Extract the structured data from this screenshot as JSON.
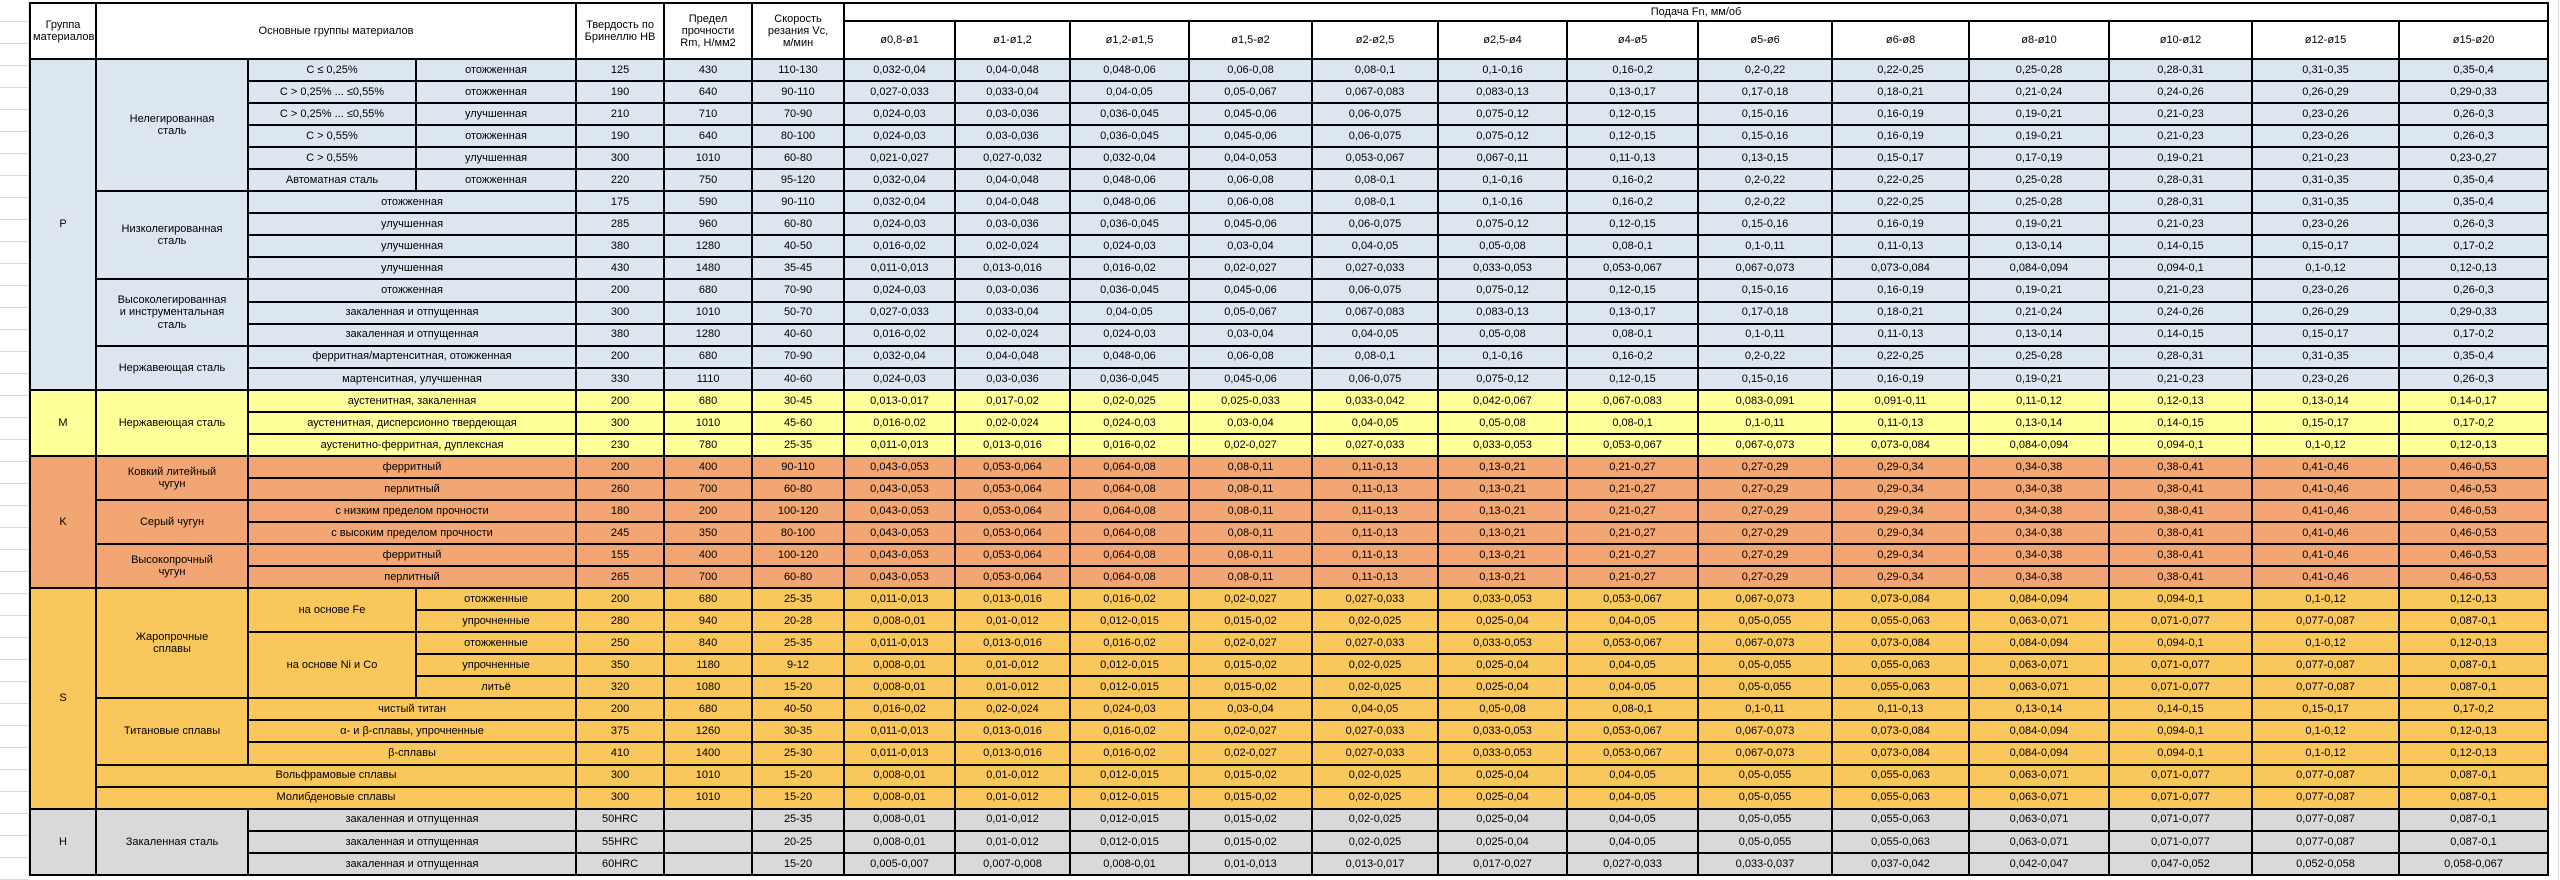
{
  "header": {
    "col_group": "Группа\nматериалов",
    "col_materials": "Основные группы материалов",
    "col_hb": "Твердость по\nБринеллю НВ",
    "col_rm": "Предел\nпрочности\nRm, Н/мм2",
    "col_vc": "Скорость\nрезания Vc,\nм/мин",
    "feed_title": "Подача Fn, мм/об",
    "diameters": [
      "ø0,8-ø1",
      "ø1-ø1,2",
      "ø1,2-ø1,5",
      "ø1,5-ø2",
      "ø2-ø2,5",
      "ø2,5-ø4",
      "ø4-ø5",
      "ø5-ø6",
      "ø6-ø8",
      "ø8-ø10",
      "ø10-ø12",
      "ø12-ø15",
      "ø15-ø20"
    ]
  },
  "colors": {
    "P": "#DCE6F1",
    "M": "#FFFF99",
    "K": "#F2A673",
    "S": "#FAC75C",
    "H": "#D9D9D9",
    "header_bg": "#FFFFFF",
    "grid_line": "#000000"
  },
  "feed_patterns": {
    "A": [
      "0,032-0,04",
      "0,04-0,048",
      "0,048-0,06",
      "0,06-0,08",
      "0,08-0,1",
      "0,1-0,16",
      "0,16-0,2",
      "0,2-0,22",
      "0,22-0,25",
      "0,25-0,28",
      "0,28-0,31",
      "0,31-0,35",
      "0,35-0,4"
    ],
    "B": [
      "0,027-0,033",
      "0,033-0,04",
      "0,04-0,05",
      "0,05-0,067",
      "0,067-0,083",
      "0,083-0,13",
      "0,13-0,17",
      "0,17-0,18",
      "0,18-0,21",
      "0,21-0,24",
      "0,24-0,26",
      "0,26-0,29",
      "0,29-0,33"
    ],
    "C": [
      "0,024-0,03",
      "0,03-0,036",
      "0,036-0,045",
      "0,045-0,06",
      "0,06-0,075",
      "0,075-0,12",
      "0,12-0,15",
      "0,15-0,16",
      "0,16-0,19",
      "0,19-0,21",
      "0,21-0,23",
      "0,23-0,26",
      "0,26-0,3"
    ],
    "F": [
      "0,021-0,027",
      "0,027-0,032",
      "0,032-0,04",
      "0,04-0,053",
      "0,053-0,067",
      "0,067-0,11",
      "0,11-0,13",
      "0,13-0,15",
      "0,15-0,17",
      "0,17-0,19",
      "0,19-0,21",
      "0,21-0,23",
      "0,23-0,27"
    ],
    "D": [
      "0,016-0,02",
      "0,02-0,024",
      "0,024-0,03",
      "0,03-0,04",
      "0,04-0,05",
      "0,05-0,08",
      "0,08-0,1",
      "0,1-0,11",
      "0,11-0,13",
      "0,13-0,14",
      "0,14-0,15",
      "0,15-0,17",
      "0,17-0,2"
    ],
    "E": [
      "0,011-0,013",
      "0,013-0,016",
      "0,016-0,02",
      "0,02-0,027",
      "0,027-0,033",
      "0,033-0,053",
      "0,053-0,067",
      "0,067-0,073",
      "0,073-0,084",
      "0,084-0,094",
      "0,094-0,1",
      "0,1-0,12",
      "0,12-0,13"
    ],
    "G": [
      "0,013-0,017",
      "0,017-0,02",
      "0,02-0,025",
      "0,025-0,033",
      "0,033-0,042",
      "0,042-0,067",
      "0,067-0,083",
      "0,083-0,091",
      "0,091-0,11",
      "0,11-0,12",
      "0,12-0,13",
      "0,13-0,14",
      "0,14-0,17"
    ],
    "K": [
      "0,043-0,053",
      "0,053-0,064",
      "0,064-0,08",
      "0,08-0,11",
      "0,11-0,13",
      "0,13-0,21",
      "0,21-0,27",
      "0,27-0,29",
      "0,29-0,34",
      "0,34-0,38",
      "0,38-0,41",
      "0,41-0,46",
      "0,46-0,53"
    ],
    "H8": [
      "0,008-0,01",
      "0,01-0,012",
      "0,012-0,015",
      "0,015-0,02",
      "0,02-0,025",
      "0,025-0,04",
      "0,04-0,05",
      "0,05-0,055",
      "0,055-0,063",
      "0,063-0,071",
      "0,071-0,077",
      "0,077-0,087",
      "0,087-0,1"
    ],
    "H5": [
      "0,005-0,007",
      "0,007-0,008",
      "0,008-0,01",
      "0,01-0,013",
      "0,013-0,017",
      "0,017-0,027",
      "0,027-0,033",
      "0,033-0,037",
      "0,037-0,042",
      "0,042-0,047",
      "0,047-0,052",
      "0,052-0,058",
      "0,058-0,067"
    ]
  },
  "rows": [
    {
      "g": "P",
      "fp": "A",
      "cells": [
        {
          "t": "P",
          "rs": 15,
          "n": "group-letter-cell"
        },
        {
          "t": "Нелегированная\nсталь",
          "rs": 6,
          "n": "material-group-cell"
        },
        {
          "t": "C ≤ 0,25%"
        },
        {
          "t": "отожженная"
        },
        {
          "t": "125"
        },
        {
          "t": "430"
        },
        {
          "t": "110-130"
        }
      ]
    },
    {
      "g": "P",
      "fp": "B",
      "cells": [
        {
          "t": "C > 0,25% ... ≤0,55%"
        },
        {
          "t": "отожженная"
        },
        {
          "t": "190"
        },
        {
          "t": "640"
        },
        {
          "t": "90-110"
        }
      ]
    },
    {
      "g": "P",
      "fp": "C",
      "cells": [
        {
          "t": "C > 0,25% ... ≤0,55%"
        },
        {
          "t": "улучшенная"
        },
        {
          "t": "210"
        },
        {
          "t": "710"
        },
        {
          "t": "70-90"
        }
      ]
    },
    {
      "g": "P",
      "fp": "C",
      "cells": [
        {
          "t": "C > 0,55%"
        },
        {
          "t": "отожженная"
        },
        {
          "t": "190"
        },
        {
          "t": "640"
        },
        {
          "t": "80-100"
        }
      ]
    },
    {
      "g": "P",
      "fp": "F",
      "cells": [
        {
          "t": "C > 0,55%"
        },
        {
          "t": "улучшенная"
        },
        {
          "t": "300"
        },
        {
          "t": "1010"
        },
        {
          "t": "60-80"
        }
      ]
    },
    {
      "g": "P",
      "fp": "A",
      "cells": [
        {
          "t": "Автоматная сталь"
        },
        {
          "t": "отожженная"
        },
        {
          "t": "220"
        },
        {
          "t": "750"
        },
        {
          "t": "95-120"
        }
      ]
    },
    {
      "g": "P",
      "fp": "A",
      "cells": [
        {
          "t": "Низколегированная\nсталь",
          "rs": 4,
          "n": "material-group-cell"
        },
        {
          "t": "отожженная",
          "cs": 2
        },
        {
          "t": "175"
        },
        {
          "t": "590"
        },
        {
          "t": "90-110"
        }
      ]
    },
    {
      "g": "P",
      "fp": "C",
      "cells": [
        {
          "t": "улучшенная",
          "cs": 2
        },
        {
          "t": "285"
        },
        {
          "t": "960"
        },
        {
          "t": "60-80"
        }
      ]
    },
    {
      "g": "P",
      "fp": "D",
      "cells": [
        {
          "t": "улучшенная",
          "cs": 2
        },
        {
          "t": "380"
        },
        {
          "t": "1280"
        },
        {
          "t": "40-50"
        }
      ]
    },
    {
      "g": "P",
      "fp": "E",
      "cells": [
        {
          "t": "улучшенная",
          "cs": 2
        },
        {
          "t": "430"
        },
        {
          "t": "1480"
        },
        {
          "t": "35-45"
        }
      ]
    },
    {
      "g": "P",
      "fp": "C",
      "cells": [
        {
          "t": "Высоколегированная\nи инструментальная\nсталь",
          "rs": 3,
          "n": "material-group-cell"
        },
        {
          "t": "отожженная",
          "cs": 2
        },
        {
          "t": "200"
        },
        {
          "t": "680"
        },
        {
          "t": "70-90"
        }
      ]
    },
    {
      "g": "P",
      "fp": "B",
      "cells": [
        {
          "t": "закаленная и отпущенная",
          "cs": 2
        },
        {
          "t": "300"
        },
        {
          "t": "1010"
        },
        {
          "t": "50-70"
        }
      ]
    },
    {
      "g": "P",
      "fp": "D",
      "cells": [
        {
          "t": "закаленная и отпущенная",
          "cs": 2
        },
        {
          "t": "380"
        },
        {
          "t": "1280"
        },
        {
          "t": "40-60"
        }
      ]
    },
    {
      "g": "P",
      "fp": "A",
      "cells": [
        {
          "t": "Нержавеющая сталь",
          "rs": 2,
          "n": "material-group-cell"
        },
        {
          "t": "ферритная/мартенситная, отожженная",
          "cs": 2
        },
        {
          "t": "200"
        },
        {
          "t": "680"
        },
        {
          "t": "70-90"
        }
      ]
    },
    {
      "g": "P",
      "fp": "C",
      "cells": [
        {
          "t": "мартенситная, улучшенная",
          "cs": 2
        },
        {
          "t": "330"
        },
        {
          "t": "1110"
        },
        {
          "t": "40-60"
        }
      ]
    },
    {
      "g": "M",
      "fp": "G",
      "cells": [
        {
          "t": "M",
          "rs": 3,
          "n": "group-letter-cell"
        },
        {
          "t": "Нержавеющая сталь",
          "rs": 3,
          "n": "material-group-cell"
        },
        {
          "t": "аустенитная, закаленная",
          "cs": 2
        },
        {
          "t": "200"
        },
        {
          "t": "680"
        },
        {
          "t": "30-45"
        }
      ]
    },
    {
      "g": "M",
      "fp": "D",
      "cells": [
        {
          "t": "аустенитная, дисперсионно твердеющая",
          "cs": 2
        },
        {
          "t": "300"
        },
        {
          "t": "1010"
        },
        {
          "t": "45-60"
        }
      ]
    },
    {
      "g": "M",
      "fp": "E",
      "cells": [
        {
          "t": "аустенитно-ферритная, дуплексная",
          "cs": 2
        },
        {
          "t": "230"
        },
        {
          "t": "780"
        },
        {
          "t": "25-35"
        }
      ]
    },
    {
      "g": "K",
      "fp": "K",
      "cells": [
        {
          "t": "K",
          "rs": 6,
          "n": "group-letter-cell"
        },
        {
          "t": "Ковкий литейный\nчугун",
          "rs": 2,
          "n": "material-group-cell"
        },
        {
          "t": "ферритный",
          "cs": 2
        },
        {
          "t": "200"
        },
        {
          "t": "400"
        },
        {
          "t": "90-110"
        }
      ]
    },
    {
      "g": "K",
      "fp": "K",
      "cells": [
        {
          "t": "перлитный",
          "cs": 2
        },
        {
          "t": "260"
        },
        {
          "t": "700"
        },
        {
          "t": "60-80"
        }
      ]
    },
    {
      "g": "K",
      "fp": "K",
      "cells": [
        {
          "t": "Серый чугун",
          "rs": 2,
          "n": "material-group-cell"
        },
        {
          "t": "с низким пределом прочности",
          "cs": 2
        },
        {
          "t": "180"
        },
        {
          "t": "200"
        },
        {
          "t": "100-120"
        }
      ]
    },
    {
      "g": "K",
      "fp": "K",
      "cells": [
        {
          "t": "с высоким пределом прочности",
          "cs": 2
        },
        {
          "t": "245"
        },
        {
          "t": "350"
        },
        {
          "t": "80-100"
        }
      ]
    },
    {
      "g": "K",
      "fp": "K",
      "cells": [
        {
          "t": "Высокопрочный\nчугун",
          "rs": 2,
          "n": "material-group-cell"
        },
        {
          "t": "ферритный",
          "cs": 2
        },
        {
          "t": "155"
        },
        {
          "t": "400"
        },
        {
          "t": "100-120"
        }
      ]
    },
    {
      "g": "K",
      "fp": "K",
      "cells": [
        {
          "t": "перлитный",
          "cs": 2
        },
        {
          "t": "265"
        },
        {
          "t": "700"
        },
        {
          "t": "60-80"
        }
      ]
    },
    {
      "g": "S",
      "fp": "E",
      "cells": [
        {
          "t": "S",
          "rs": 10,
          "n": "group-letter-cell"
        },
        {
          "t": "Жаропрочные\nсплавы",
          "rs": 5,
          "n": "material-group-cell"
        },
        {
          "t": "на основе Fe",
          "rs": 2
        },
        {
          "t": "отожженные"
        },
        {
          "t": "200"
        },
        {
          "t": "680"
        },
        {
          "t": "25-35"
        }
      ]
    },
    {
      "g": "S",
      "fp": "H8",
      "cells": [
        {
          "t": "упрочненные"
        },
        {
          "t": "280"
        },
        {
          "t": "940"
        },
        {
          "t": "20-28"
        }
      ]
    },
    {
      "g": "S",
      "fp": "E",
      "cells": [
        {
          "t": "на основе Ni и Co",
          "rs": 3
        },
        {
          "t": "отожженные"
        },
        {
          "t": "250"
        },
        {
          "t": "840"
        },
        {
          "t": "25-35"
        }
      ]
    },
    {
      "g": "S",
      "fp": "H8",
      "cells": [
        {
          "t": "упрочненные"
        },
        {
          "t": "350"
        },
        {
          "t": "1180"
        },
        {
          "t": "9-12"
        }
      ]
    },
    {
      "g": "S",
      "fp": "H8",
      "cells": [
        {
          "t": "литьё"
        },
        {
          "t": "320"
        },
        {
          "t": "1080"
        },
        {
          "t": "15-20"
        }
      ]
    },
    {
      "g": "S",
      "fp": "D",
      "cells": [
        {
          "t": "Титановые сплавы",
          "rs": 3,
          "n": "material-group-cell"
        },
        {
          "t": "чистый титан",
          "cs": 2
        },
        {
          "t": "200"
        },
        {
          "t": "680"
        },
        {
          "t": "40-50"
        }
      ]
    },
    {
      "g": "S",
      "fp": "E",
      "cells": [
        {
          "t": "α- и β-сплавы, упрочненные",
          "cs": 2
        },
        {
          "t": "375"
        },
        {
          "t": "1260"
        },
        {
          "t": "30-35"
        }
      ]
    },
    {
      "g": "S",
      "fp": "E",
      "cells": [
        {
          "t": "β-сплавы",
          "cs": 2
        },
        {
          "t": "410"
        },
        {
          "t": "1400"
        },
        {
          "t": "25-30"
        }
      ]
    },
    {
      "g": "S",
      "fp": "H8",
      "cells": [
        {
          "t": "Вольфрамовые сплавы",
          "cs": 3,
          "n": "material-group-cell"
        },
        {
          "t": "300"
        },
        {
          "t": "1010"
        },
        {
          "t": "15-20"
        }
      ]
    },
    {
      "g": "S",
      "fp": "H8",
      "cells": [
        {
          "t": "Молибденовые сплавы",
          "cs": 3,
          "n": "material-group-cell"
        },
        {
          "t": "300"
        },
        {
          "t": "1010"
        },
        {
          "t": "15-20"
        }
      ]
    },
    {
      "g": "H",
      "fp": "H8",
      "cells": [
        {
          "t": "H",
          "rs": 3,
          "n": "group-letter-cell"
        },
        {
          "t": "Закаленная сталь",
          "rs": 3,
          "n": "material-group-cell"
        },
        {
          "t": "закаленная и отпущенная",
          "cs": 2
        },
        {
          "t": "50HRC"
        },
        {
          "t": ""
        },
        {
          "t": "25-35"
        }
      ]
    },
    {
      "g": "H",
      "fp": "H8",
      "cells": [
        {
          "t": "закаленная и отпущенная",
          "cs": 2
        },
        {
          "t": "55HRC"
        },
        {
          "t": ""
        },
        {
          "t": "20-25"
        }
      ]
    },
    {
      "g": "H",
      "fp": "H5",
      "cells": [
        {
          "t": "закаленная и отпущенная",
          "cs": 2
        },
        {
          "t": "60HRC"
        },
        {
          "t": ""
        },
        {
          "t": "15-20"
        }
      ]
    }
  ]
}
